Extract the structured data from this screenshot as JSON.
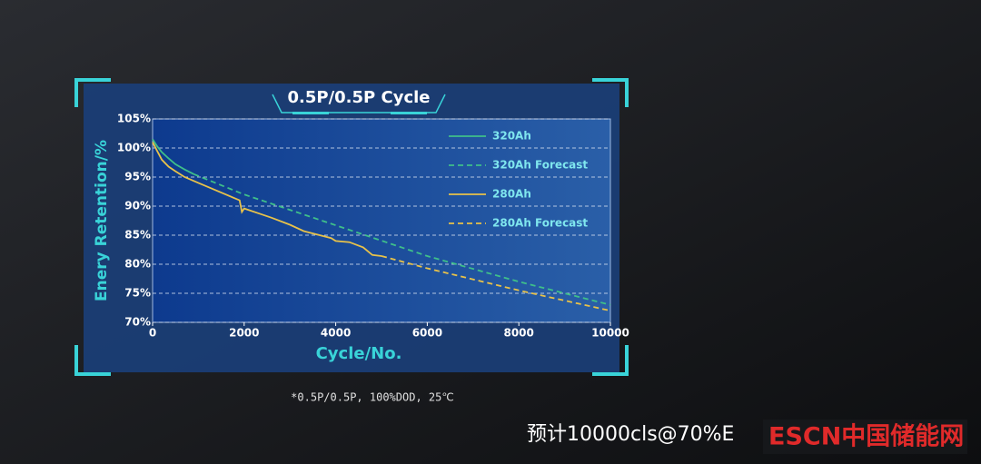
{
  "chart_data": {
    "type": "line",
    "title": "0.5P/0.5P Cycle",
    "xlabel": "Cycle/No.",
    "ylabel": "Enery Retention/%",
    "xlim": [
      0,
      10000
    ],
    "xticks": [
      0,
      2000,
      4000,
      6000,
      8000,
      10000
    ],
    "ylim": [
      70,
      105
    ],
    "yticks": [
      {
        "value": 70,
        "label": "70%"
      },
      {
        "value": 75,
        "label": "75%"
      },
      {
        "value": 80,
        "label": "80%"
      },
      {
        "value": 85,
        "label": "85%"
      },
      {
        "value": 90,
        "label": "90%"
      },
      {
        "value": 95,
        "label": "95%"
      },
      {
        "value": 100,
        "label": "100%"
      },
      {
        "value": 105,
        "label": "105%"
      }
    ],
    "grid": true,
    "legend": "upper right",
    "series": [
      {
        "name": "320Ah",
        "color": "#3fbf8a",
        "style": "solid",
        "x": [
          0,
          100,
          200,
          350,
          500,
          700,
          900
        ],
        "values": [
          101.5,
          100.3,
          99.3,
          98.2,
          97.2,
          96.3,
          95.5
        ]
      },
      {
        "name": "320Ah Forecast",
        "color": "#3fbf8a",
        "style": "dashed",
        "x": [
          900,
          2000,
          4000,
          6000,
          8000,
          10000
        ],
        "values": [
          95.5,
          92,
          86.7,
          81.4,
          77,
          73
        ]
      },
      {
        "name": "280Ah",
        "color": "#e8c24a",
        "style": "solid",
        "x": [
          0,
          100,
          200,
          350,
          500,
          700,
          1000,
          1300,
          1600,
          1900,
          1950,
          2000,
          2300,
          2600,
          3000,
          3300,
          3600,
          3900,
          4000,
          4300,
          4600,
          4800,
          5000
        ],
        "values": [
          101,
          99.5,
          98,
          96.8,
          96,
          95,
          94,
          93,
          92,
          91,
          89,
          89.6,
          88.8,
          88,
          86.8,
          85.7,
          85.1,
          84.5,
          84,
          83.8,
          82.9,
          81.6,
          81.4
        ]
      },
      {
        "name": "280Ah Forecast",
        "color": "#e8c24a",
        "style": "dashed",
        "x": [
          5000,
          6000,
          8000,
          10000
        ],
        "values": [
          81.4,
          79.3,
          75.5,
          72
        ]
      }
    ]
  },
  "footnote": "*0.5P/0.5P, 100%DOD, 25℃",
  "caption": "预计10000cls@70%E",
  "watermark": "ESCN中国储能网"
}
